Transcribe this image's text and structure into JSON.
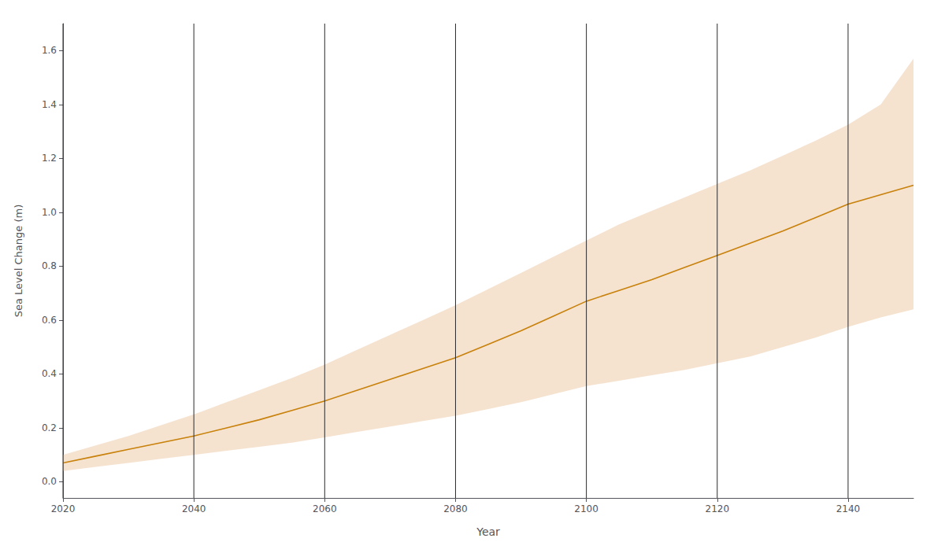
{
  "chart_data": {
    "type": "line",
    "xlabel": "Year",
    "ylabel": "Sea Level Change (m)",
    "x": [
      2020,
      2025,
      2030,
      2035,
      2040,
      2045,
      2050,
      2055,
      2060,
      2065,
      2070,
      2075,
      2080,
      2085,
      2090,
      2095,
      2100,
      2105,
      2110,
      2115,
      2120,
      2125,
      2130,
      2135,
      2140,
      2145,
      2150
    ],
    "series": [
      {
        "type": "line",
        "color": "#C8810A",
        "values": [
          0.07,
          0.095,
          0.12,
          0.145,
          0.17,
          0.2,
          0.23,
          0.265,
          0.3,
          0.34,
          0.38,
          0.42,
          0.46,
          0.51,
          0.56,
          0.615,
          0.67,
          0.71,
          0.75,
          0.795,
          0.84,
          0.885,
          0.93,
          0.98,
          1.03,
          1.065,
          1.1
        ]
      },
      {
        "type": "band",
        "color": "#EDCBA8",
        "lower": [
          0.04,
          0.055,
          0.07,
          0.085,
          0.1,
          0.115,
          0.13,
          0.145,
          0.165,
          0.185,
          0.205,
          0.225,
          0.245,
          0.27,
          0.295,
          0.325,
          0.355,
          0.375,
          0.395,
          0.415,
          0.44,
          0.465,
          0.5,
          0.535,
          0.575,
          0.61,
          0.64
        ],
        "upper": [
          0.1,
          0.135,
          0.17,
          0.21,
          0.25,
          0.295,
          0.34,
          0.385,
          0.435,
          0.49,
          0.545,
          0.6,
          0.655,
          0.715,
          0.775,
          0.835,
          0.895,
          0.955,
          1.005,
          1.055,
          1.105,
          1.155,
          1.21,
          1.265,
          1.325,
          1.4,
          1.57
        ]
      },
      {
        "type": "vline",
        "color": "#2a2a2a",
        "x": [
          2020,
          2040,
          2060,
          2080,
          2100,
          2120,
          2140
        ]
      }
    ],
    "xlim": [
      2020,
      2150
    ],
    "ylim": [
      -0.06,
      1.7
    ],
    "xticks": [
      2020,
      2040,
      2060,
      2080,
      2100,
      2120,
      2140
    ],
    "yticks": [
      {
        "value": 0,
        "label": "0.0"
      },
      0.2,
      0.4,
      0.6,
      0.8,
      {
        "value": 1,
        "label": "1.0"
      },
      1.2,
      1.4,
      1.6
    ],
    "grid": false
  }
}
